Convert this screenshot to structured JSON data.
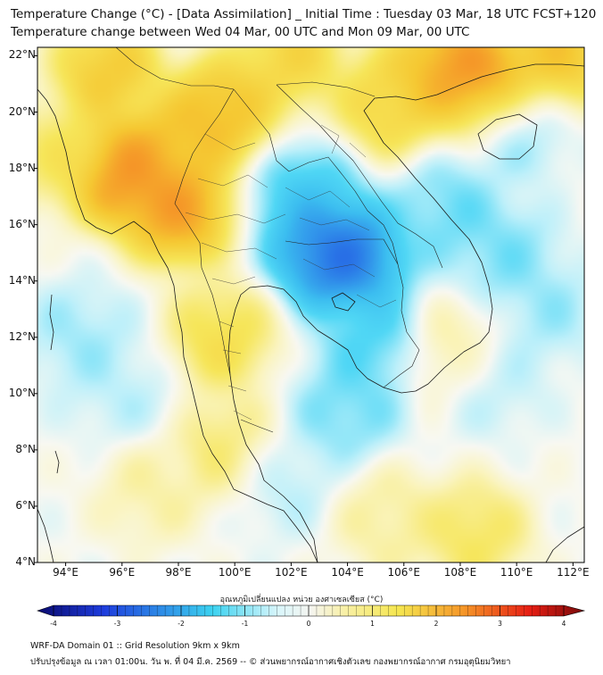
{
  "title": {
    "line1": "Temperature Change (°C) - [Data Assimilation] _ Initial Time : Tuesday 03 Mar, 18 UTC FCST+120",
    "line2": "Temperature change between Wed 04 Mar, 00 UTC and Mon 09 Mar, 00 UTC"
  },
  "map": {
    "lat_labels": [
      "22°N",
      "20°N",
      "18°N",
      "16°N",
      "14°N",
      "12°N",
      "10°N",
      "8°N",
      "6°N",
      "4°N"
    ],
    "lon_labels": [
      "94°E",
      "96°E",
      "98°E",
      "100°E",
      "102°E",
      "104°E",
      "106°E",
      "108°E",
      "110°E",
      "112°E"
    ],
    "lat_range": [
      4,
      22.3
    ],
    "lon_range": [
      93,
      112.4
    ],
    "anomalies": [
      {
        "lon": 103.2,
        "lat": 15.2,
        "value": -2.6
      },
      {
        "lon": 104.2,
        "lat": 14.7,
        "value": -2.4
      },
      {
        "lon": 102.5,
        "lat": 17.0,
        "value": -1.4
      },
      {
        "lon": 105.0,
        "lat": 12.0,
        "value": -1.2
      },
      {
        "lon": 104.0,
        "lat": 9.5,
        "value": -1.0
      },
      {
        "lon": 107.5,
        "lat": 16.5,
        "value": -1.0
      },
      {
        "lon": 109.5,
        "lat": 15.0,
        "value": -0.9
      },
      {
        "lon": 110.0,
        "lat": 19.5,
        "value": -0.8
      },
      {
        "lon": 111.0,
        "lat": 13.0,
        "value": -0.7
      },
      {
        "lon": 101.5,
        "lat": 7.0,
        "value": -0.6
      },
      {
        "lon": 94.5,
        "lat": 12.0,
        "value": -0.7
      },
      {
        "lon": 109.0,
        "lat": 10.5,
        "value": -0.6
      },
      {
        "lon": 96.0,
        "lat": 10.0,
        "value": -0.5
      },
      {
        "lon": 96.0,
        "lat": 17.8,
        "value": 3.0
      },
      {
        "lon": 98.0,
        "lat": 16.5,
        "value": 2.8
      },
      {
        "lon": 97.5,
        "lat": 18.5,
        "value": 2.2
      },
      {
        "lon": 109.0,
        "lat": 21.0,
        "value": 3.0
      },
      {
        "lon": 107.5,
        "lat": 21.7,
        "value": 2.6
      },
      {
        "lon": 111.5,
        "lat": 22.0,
        "value": 2.2
      },
      {
        "lon": 99.5,
        "lat": 20.0,
        "value": 2.4
      },
      {
        "lon": 102.0,
        "lat": 22.0,
        "value": 1.8
      },
      {
        "lon": 95.5,
        "lat": 21.5,
        "value": 2.1
      },
      {
        "lon": 105.5,
        "lat": 20.3,
        "value": 1.8
      },
      {
        "lon": 99.5,
        "lat": 12.0,
        "value": 1.5
      },
      {
        "lon": 99.8,
        "lat": 8.0,
        "value": 1.2
      },
      {
        "lon": 93.8,
        "lat": 18.5,
        "value": 1.2
      },
      {
        "lon": 108.5,
        "lat": 5.0,
        "value": 1.3
      },
      {
        "lon": 97.0,
        "lat": 6.5,
        "value": 0.7
      },
      {
        "lon": 105.5,
        "lat": 5.5,
        "value": 0.8
      },
      {
        "lon": 107.8,
        "lat": 11.5,
        "value": 0.9
      }
    ]
  },
  "colorbar": {
    "label": "อุณหภูมิเปลี่ยนแปลง หน่วย องศาเซลเซียส (°C)",
    "min": -4,
    "max": 4,
    "ticks": [
      "-4",
      "-3",
      "-2",
      "-1",
      "0",
      "1",
      "2",
      "3",
      "4"
    ],
    "colors": {
      "dark_blue": "#0a0a6e",
      "blue": "#1e3cdc",
      "cyan": "#3cd2f0",
      "white": "#f5f5f0",
      "yellow": "#f5e650",
      "orange": "#f59628",
      "red": "#e61e14",
      "dark_red": "#780a0a"
    }
  },
  "footer": {
    "line1": "WRF-DA Domain 01 :: Grid Resolution 9km x 9km",
    "line2": "ปรับปรุงข้อมูล ณ เวลา 01:00น. วัน พ. ที่ 04 มี.ค. 2569 -- © ส่วนพยากรณ์อากาศเชิงตัวเลข กองพยากรณ์อากาศ กรมอุตุนิยมวิทยา"
  }
}
